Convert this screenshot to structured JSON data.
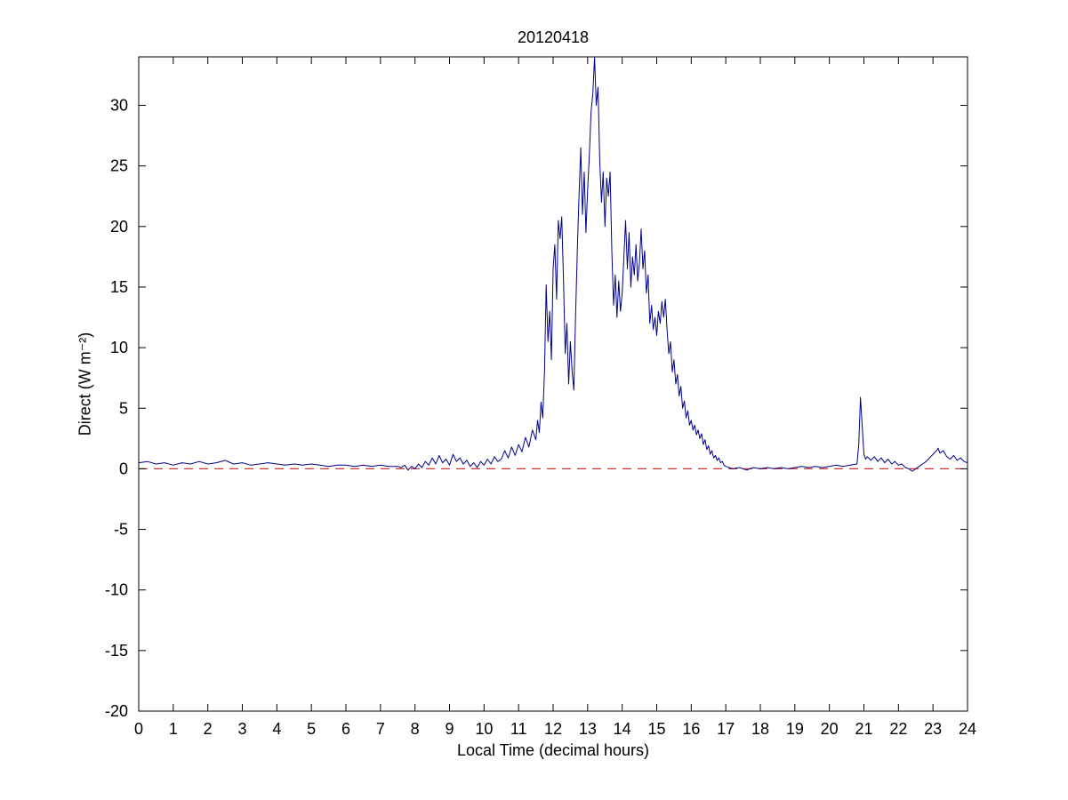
{
  "chart_data": {
    "type": "line",
    "title": "20120418",
    "xlabel": "Local Time (decimal hours)",
    "ylabel": "Direct (W m⁻²)",
    "xlim": [
      0,
      24
    ],
    "ylim": [
      -20,
      34
    ],
    "xticks": [
      0,
      1,
      2,
      3,
      4,
      5,
      6,
      7,
      8,
      9,
      10,
      11,
      12,
      13,
      14,
      15,
      16,
      17,
      18,
      19,
      20,
      21,
      22,
      23,
      24
    ],
    "yticks": [
      -20,
      -15,
      -10,
      -5,
      0,
      5,
      10,
      15,
      20,
      25,
      30
    ],
    "grid": false,
    "legend": "none",
    "reference_line": {
      "name": "zero-line",
      "y": 0,
      "color": "#cc3333",
      "style": "dashed"
    },
    "series": [
      {
        "name": "Direct irradiance",
        "color": "#00008B",
        "points": [
          [
            0,
            0.5
          ],
          [
            0.25,
            0.6
          ],
          [
            0.5,
            0.4
          ],
          [
            0.75,
            0.5
          ],
          [
            1,
            0.3
          ],
          [
            1.25,
            0.5
          ],
          [
            1.5,
            0.4
          ],
          [
            1.75,
            0.6
          ],
          [
            2,
            0.4
          ],
          [
            2.25,
            0.5
          ],
          [
            2.5,
            0.7
          ],
          [
            2.75,
            0.4
          ],
          [
            3,
            0.5
          ],
          [
            3.25,
            0.3
          ],
          [
            3.5,
            0.4
          ],
          [
            3.75,
            0.5
          ],
          [
            4,
            0.4
          ],
          [
            4.25,
            0.3
          ],
          [
            4.5,
            0.4
          ],
          [
            4.75,
            0.3
          ],
          [
            5,
            0.4
          ],
          [
            5.25,
            0.3
          ],
          [
            5.5,
            0.2
          ],
          [
            5.75,
            0.3
          ],
          [
            6,
            0.3
          ],
          [
            6.25,
            0.2
          ],
          [
            6.5,
            0.3
          ],
          [
            6.75,
            0.2
          ],
          [
            7,
            0.3
          ],
          [
            7.25,
            0.2
          ],
          [
            7.5,
            0.2
          ],
          [
            7.6,
            0.1
          ],
          [
            7.7,
            0.3
          ],
          [
            7.8,
            -0.1
          ],
          [
            7.9,
            0.2
          ],
          [
            8,
            0
          ],
          [
            8.1,
            0.4
          ],
          [
            8.2,
            0.1
          ],
          [
            8.3,
            0.6
          ],
          [
            8.4,
            0.3
          ],
          [
            8.5,
            0.9
          ],
          [
            8.6,
            0.4
          ],
          [
            8.7,
            1.1
          ],
          [
            8.8,
            0.5
          ],
          [
            8.9,
            0.8
          ],
          [
            9,
            0.3
          ],
          [
            9.1,
            1.2
          ],
          [
            9.2,
            0.6
          ],
          [
            9.3,
            0.9
          ],
          [
            9.4,
            0.4
          ],
          [
            9.5,
            0.7
          ],
          [
            9.6,
            0.2
          ],
          [
            9.7,
            0.5
          ],
          [
            9.8,
            0.1
          ],
          [
            9.9,
            0.6
          ],
          [
            10,
            0.3
          ],
          [
            10.1,
            0.8
          ],
          [
            10.2,
            0.4
          ],
          [
            10.3,
            1
          ],
          [
            10.4,
            0.6
          ],
          [
            10.5,
            0.8
          ],
          [
            10.6,
            1.5
          ],
          [
            10.7,
            0.9
          ],
          [
            10.8,
            1.8
          ],
          [
            10.9,
            1.1
          ],
          [
            11,
            2
          ],
          [
            11.1,
            1.4
          ],
          [
            11.2,
            2.6
          ],
          [
            11.3,
            1.8
          ],
          [
            11.4,
            3.2
          ],
          [
            11.5,
            2.4
          ],
          [
            11.55,
            4
          ],
          [
            11.6,
            3
          ],
          [
            11.65,
            5.5
          ],
          [
            11.7,
            4.2
          ],
          [
            11.75,
            8
          ],
          [
            11.8,
            15.2
          ],
          [
            11.85,
            10.5
          ],
          [
            11.9,
            13
          ],
          [
            11.95,
            9
          ],
          [
            12,
            16.5
          ],
          [
            12.05,
            18.5
          ],
          [
            12.1,
            14
          ],
          [
            12.15,
            20.5
          ],
          [
            12.2,
            19
          ],
          [
            12.25,
            20.8
          ],
          [
            12.3,
            15.5
          ],
          [
            12.35,
            9.5
          ],
          [
            12.4,
            12
          ],
          [
            12.45,
            7
          ],
          [
            12.5,
            10.5
          ],
          [
            12.55,
            8
          ],
          [
            12.6,
            6.5
          ],
          [
            12.65,
            12.5
          ],
          [
            12.7,
            18
          ],
          [
            12.75,
            22.5
          ],
          [
            12.8,
            26.5
          ],
          [
            12.85,
            21
          ],
          [
            12.9,
            24.5
          ],
          [
            12.95,
            19.5
          ],
          [
            13,
            23
          ],
          [
            13.05,
            26
          ],
          [
            13.1,
            29.5
          ],
          [
            13.15,
            31
          ],
          [
            13.2,
            34
          ],
          [
            13.25,
            30
          ],
          [
            13.3,
            31.5
          ],
          [
            13.35,
            25.5
          ],
          [
            13.4,
            22
          ],
          [
            13.45,
            24.5
          ],
          [
            13.5,
            20
          ],
          [
            13.55,
            24
          ],
          [
            13.6,
            22.5
          ],
          [
            13.65,
            24.5
          ],
          [
            13.7,
            18
          ],
          [
            13.75,
            13.5
          ],
          [
            13.8,
            16
          ],
          [
            13.85,
            12.5
          ],
          [
            13.9,
            15.5
          ],
          [
            13.95,
            13
          ],
          [
            14,
            14.5
          ],
          [
            14.05,
            17.5
          ],
          [
            14.1,
            20.5
          ],
          [
            14.15,
            16.5
          ],
          [
            14.2,
            19.5
          ],
          [
            14.25,
            15
          ],
          [
            14.3,
            17.5
          ],
          [
            14.35,
            16
          ],
          [
            14.4,
            18.5
          ],
          [
            14.45,
            15.5
          ],
          [
            14.5,
            17
          ],
          [
            14.55,
            19.8
          ],
          [
            14.6,
            16.5
          ],
          [
            14.65,
            18
          ],
          [
            14.7,
            14.5
          ],
          [
            14.75,
            16
          ],
          [
            14.8,
            12
          ],
          [
            14.85,
            13.5
          ],
          [
            14.9,
            11.5
          ],
          [
            14.95,
            12.5
          ],
          [
            15,
            11
          ],
          [
            15.05,
            13
          ],
          [
            15.1,
            12
          ],
          [
            15.15,
            13.8
          ],
          [
            15.2,
            12.5
          ],
          [
            15.25,
            14
          ],
          [
            15.3,
            11.5
          ],
          [
            15.35,
            9.5
          ],
          [
            15.4,
            10.5
          ],
          [
            15.45,
            8
          ],
          [
            15.5,
            9
          ],
          [
            15.55,
            7
          ],
          [
            15.6,
            7.8
          ],
          [
            15.65,
            6
          ],
          [
            15.7,
            6.8
          ],
          [
            15.75,
            5
          ],
          [
            15.8,
            5.6
          ],
          [
            15.85,
            4.2
          ],
          [
            15.9,
            4.8
          ],
          [
            15.95,
            3.6
          ],
          [
            16,
            4
          ],
          [
            16.05,
            3.2
          ],
          [
            16.1,
            3.6
          ],
          [
            16.15,
            2.8
          ],
          [
            16.2,
            3.2
          ],
          [
            16.25,
            2.5
          ],
          [
            16.3,
            2.9
          ],
          [
            16.35,
            2
          ],
          [
            16.4,
            2.4
          ],
          [
            16.45,
            1.6
          ],
          [
            16.5,
            1.9
          ],
          [
            16.55,
            1.2
          ],
          [
            16.6,
            1.5
          ],
          [
            16.65,
            0.9
          ],
          [
            16.7,
            1.1
          ],
          [
            16.75,
            0.7
          ],
          [
            16.8,
            0.9
          ],
          [
            16.85,
            0.5
          ],
          [
            16.9,
            0.6
          ],
          [
            16.95,
            0.3
          ],
          [
            17,
            0.2
          ],
          [
            17.2,
            0
          ],
          [
            17.4,
            0.1
          ],
          [
            17.6,
            -0.1
          ],
          [
            17.8,
            0.1
          ],
          [
            18,
            0
          ],
          [
            18.2,
            0.1
          ],
          [
            18.4,
            0
          ],
          [
            18.6,
            0.1
          ],
          [
            18.8,
            0
          ],
          [
            19,
            0.1
          ],
          [
            19.2,
            0.2
          ],
          [
            19.4,
            0.1
          ],
          [
            19.6,
            0.2
          ],
          [
            19.8,
            0.1
          ],
          [
            20,
            0.2
          ],
          [
            20.2,
            0.3
          ],
          [
            20.4,
            0.2
          ],
          [
            20.6,
            0.3
          ],
          [
            20.8,
            0.4
          ],
          [
            20.85,
            2
          ],
          [
            20.9,
            5.9
          ],
          [
            20.95,
            3.5
          ],
          [
            21,
            1.2
          ],
          [
            21.05,
            0.8
          ],
          [
            21.1,
            1
          ],
          [
            21.2,
            0.7
          ],
          [
            21.3,
            1
          ],
          [
            21.4,
            0.6
          ],
          [
            21.5,
            0.9
          ],
          [
            21.6,
            0.5
          ],
          [
            21.7,
            0.8
          ],
          [
            21.8,
            0.4
          ],
          [
            21.9,
            0.6
          ],
          [
            22,
            0.3
          ],
          [
            22.1,
            0.4
          ],
          [
            22.2,
            0.1
          ],
          [
            22.3,
            0
          ],
          [
            22.4,
            -0.2
          ],
          [
            22.5,
            0
          ],
          [
            22.6,
            0.2
          ],
          [
            22.7,
            0.4
          ],
          [
            22.8,
            0.6
          ],
          [
            22.9,
            0.9
          ],
          [
            23,
            1.2
          ],
          [
            23.1,
            1.5
          ],
          [
            23.15,
            1.7
          ],
          [
            23.2,
            1.3
          ],
          [
            23.3,
            1.5
          ],
          [
            23.4,
            1
          ],
          [
            23.5,
            0.8
          ],
          [
            23.6,
            1.1
          ],
          [
            23.7,
            0.7
          ],
          [
            23.8,
            0.9
          ],
          [
            23.9,
            0.6
          ],
          [
            24,
            0.5
          ]
        ]
      }
    ]
  }
}
